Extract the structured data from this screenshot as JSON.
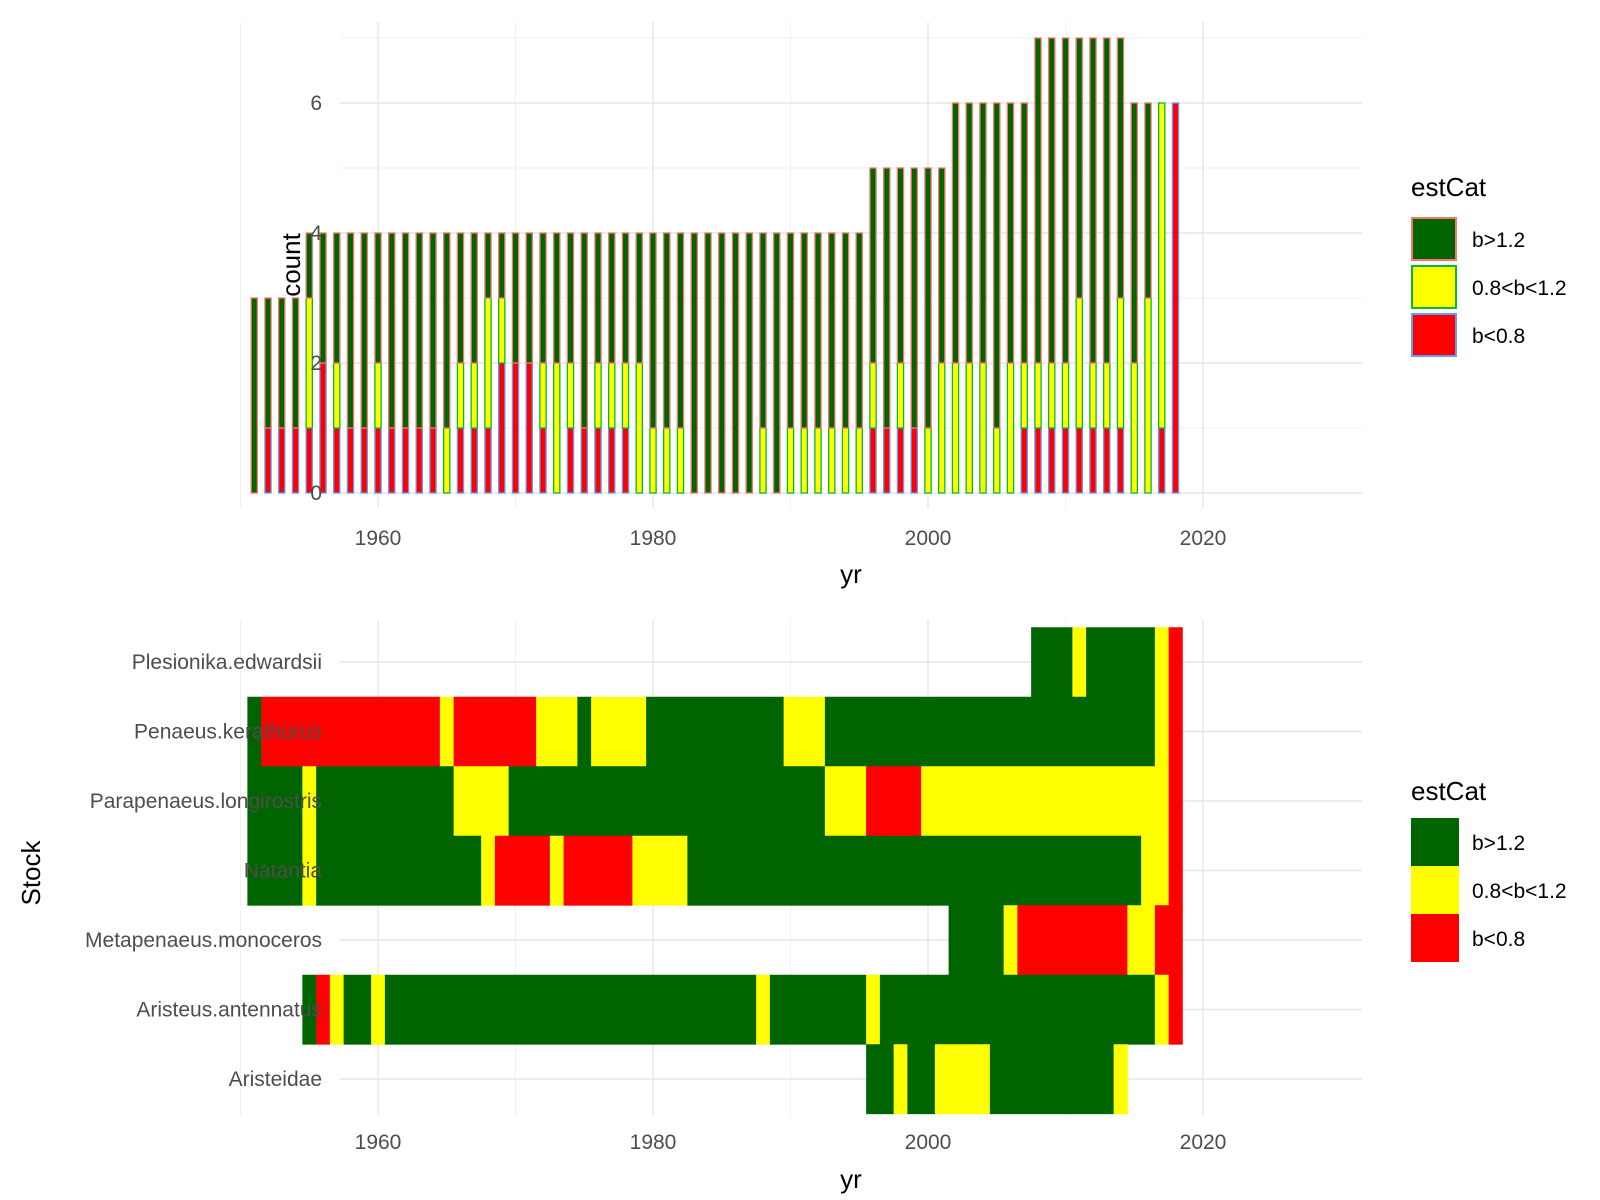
{
  "categories_legend": [
    {
      "key": "high",
      "label": "b>1.2",
      "fill": "#006400",
      "outline": "#F8766D"
    },
    {
      "key": "mid",
      "label": "0.8<b<1.2",
      "fill": "#FFFF00",
      "outline": "#00BA38"
    },
    {
      "key": "low",
      "label": "b<0.8",
      "fill": "#FF0000",
      "outline": "#619CFF"
    }
  ],
  "chart_data": [
    {
      "type": "bar",
      "stacked": true,
      "xlabel": "yr",
      "ylabel": "count",
      "legend_title": "estCat",
      "legend_position": "right",
      "xlim": [
        1950,
        2020
      ],
      "ylim": [
        0,
        7
      ],
      "x_ticks": [
        1960,
        1980,
        2000,
        2020
      ],
      "y_ticks": [
        0,
        2,
        4,
        6
      ],
      "grid": true,
      "x": [
        1951,
        1952,
        1953,
        1954,
        1955,
        1956,
        1957,
        1958,
        1959,
        1960,
        1961,
        1962,
        1963,
        1964,
        1965,
        1966,
        1967,
        1968,
        1969,
        1970,
        1971,
        1972,
        1973,
        1974,
        1975,
        1976,
        1977,
        1978,
        1979,
        1980,
        1981,
        1982,
        1983,
        1984,
        1985,
        1986,
        1987,
        1988,
        1989,
        1990,
        1991,
        1992,
        1993,
        1994,
        1995,
        1996,
        1997,
        1998,
        1999,
        2000,
        2001,
        2002,
        2003,
        2004,
        2005,
        2006,
        2007,
        2008,
        2009,
        2010,
        2011,
        2012,
        2013,
        2014,
        2015,
        2016,
        2017,
        2018
      ],
      "series": [
        {
          "key": "low",
          "values": [
            0,
            1,
            1,
            1,
            1,
            2,
            1,
            1,
            1,
            1,
            1,
            1,
            1,
            1,
            0,
            1,
            1,
            1,
            2,
            2,
            2,
            1,
            0,
            1,
            1,
            1,
            1,
            1,
            0,
            0,
            0,
            0,
            0,
            0,
            0,
            0,
            0,
            0,
            0,
            0,
            0,
            0,
            0,
            0,
            0,
            1,
            1,
            1,
            1,
            0,
            0,
            0,
            0,
            0,
            0,
            0,
            1,
            1,
            1,
            1,
            1,
            1,
            1,
            1,
            0,
            0,
            1,
            6
          ]
        },
        {
          "key": "mid",
          "values": [
            0,
            0,
            0,
            0,
            2,
            0,
            1,
            0,
            0,
            1,
            0,
            0,
            0,
            0,
            1,
            1,
            1,
            2,
            1,
            0,
            0,
            1,
            2,
            1,
            0,
            1,
            1,
            1,
            2,
            1,
            1,
            1,
            0,
            0,
            0,
            0,
            0,
            1,
            0,
            1,
            1,
            1,
            1,
            1,
            1,
            1,
            0,
            1,
            0,
            1,
            2,
            2,
            2,
            2,
            1,
            2,
            1,
            1,
            1,
            1,
            2,
            1,
            1,
            2,
            2,
            3,
            5,
            0
          ]
        },
        {
          "key": "high",
          "values": [
            3,
            2,
            2,
            2,
            1,
            2,
            2,
            3,
            3,
            2,
            3,
            3,
            3,
            3,
            3,
            2,
            2,
            1,
            1,
            2,
            2,
            2,
            2,
            2,
            3,
            2,
            2,
            2,
            2,
            3,
            3,
            3,
            4,
            4,
            4,
            4,
            4,
            3,
            4,
            3,
            3,
            3,
            3,
            3,
            3,
            3,
            4,
            3,
            4,
            4,
            3,
            4,
            4,
            4,
            5,
            4,
            4,
            5,
            5,
            5,
            4,
            5,
            5,
            4,
            4,
            3,
            0,
            0
          ]
        }
      ]
    },
    {
      "type": "heatmap",
      "xlabel": "yr",
      "ylabel": "Stock",
      "legend_title": "estCat",
      "legend_position": "right",
      "xlim": [
        1950,
        2020
      ],
      "x_ticks": [
        1960,
        1980,
        2000,
        2020
      ],
      "grid": true,
      "stocks": [
        {
          "name": "Plesionika.edwardsii",
          "runs": [
            [
              2008,
              2010,
              "high"
            ],
            [
              2011,
              2011,
              "mid"
            ],
            [
              2012,
              2016,
              "high"
            ],
            [
              2017,
              2017,
              "mid"
            ],
            [
              2018,
              2018,
              "low"
            ]
          ]
        },
        {
          "name": "Penaeus.kerathurus",
          "runs": [
            [
              1951,
              1951,
              "high"
            ],
            [
              1952,
              1964,
              "low"
            ],
            [
              1965,
              1965,
              "mid"
            ],
            [
              1966,
              1971,
              "low"
            ],
            [
              1972,
              1974,
              "mid"
            ],
            [
              1975,
              1975,
              "high"
            ],
            [
              1976,
              1979,
              "mid"
            ],
            [
              1980,
              1989,
              "high"
            ],
            [
              1990,
              1992,
              "mid"
            ],
            [
              1993,
              2016,
              "high"
            ],
            [
              2017,
              2017,
              "mid"
            ],
            [
              2018,
              2018,
              "low"
            ]
          ]
        },
        {
          "name": "Parapenaeus.longirostris",
          "runs": [
            [
              1951,
              1954,
              "high"
            ],
            [
              1955,
              1955,
              "mid"
            ],
            [
              1956,
              1965,
              "high"
            ],
            [
              1966,
              1969,
              "mid"
            ],
            [
              1970,
              1992,
              "high"
            ],
            [
              1993,
              1995,
              "mid"
            ],
            [
              1996,
              1999,
              "low"
            ],
            [
              2000,
              2017,
              "mid"
            ],
            [
              2018,
              2018,
              "low"
            ]
          ]
        },
        {
          "name": "Natantia",
          "runs": [
            [
              1951,
              1954,
              "high"
            ],
            [
              1955,
              1955,
              "mid"
            ],
            [
              1956,
              1967,
              "high"
            ],
            [
              1968,
              1968,
              "mid"
            ],
            [
              1969,
              1972,
              "low"
            ],
            [
              1973,
              1973,
              "mid"
            ],
            [
              1974,
              1978,
              "low"
            ],
            [
              1979,
              1982,
              "mid"
            ],
            [
              1983,
              2015,
              "high"
            ],
            [
              2016,
              2017,
              "mid"
            ],
            [
              2018,
              2018,
              "low"
            ]
          ]
        },
        {
          "name": "Metapenaeus.monoceros",
          "runs": [
            [
              2002,
              2005,
              "high"
            ],
            [
              2006,
              2006,
              "mid"
            ],
            [
              2007,
              2014,
              "low"
            ],
            [
              2015,
              2016,
              "mid"
            ],
            [
              2017,
              2018,
              "low"
            ]
          ]
        },
        {
          "name": "Aristeus.antennatus",
          "runs": [
            [
              1955,
              1955,
              "high"
            ],
            [
              1956,
              1956,
              "low"
            ],
            [
              1957,
              1957,
              "mid"
            ],
            [
              1958,
              1959,
              "high"
            ],
            [
              1960,
              1960,
              "mid"
            ],
            [
              1961,
              1987,
              "high"
            ],
            [
              1988,
              1988,
              "mid"
            ],
            [
              1989,
              1995,
              "high"
            ],
            [
              1996,
              1996,
              "mid"
            ],
            [
              1997,
              2016,
              "high"
            ],
            [
              2017,
              2017,
              "mid"
            ],
            [
              2018,
              2018,
              "low"
            ]
          ]
        },
        {
          "name": "Aristeidae",
          "runs": [
            [
              1996,
              1997,
              "high"
            ],
            [
              1998,
              1998,
              "mid"
            ],
            [
              1999,
              2000,
              "high"
            ],
            [
              2001,
              2004,
              "mid"
            ],
            [
              2005,
              2013,
              "high"
            ],
            [
              2014,
              2014,
              "mid"
            ]
          ]
        }
      ]
    }
  ]
}
